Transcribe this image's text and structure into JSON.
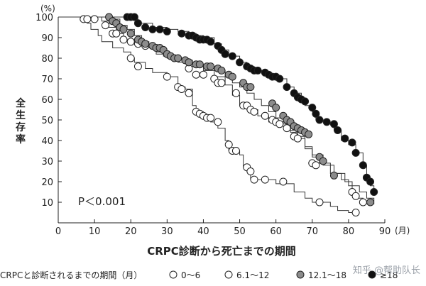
{
  "chart_data": {
    "type": "line",
    "step": true,
    "ylabel": "全生存率",
    "y_unit": "(%)",
    "xlabel": "CRPC診断から死亡までの期間",
    "x_unit": "(月)",
    "xlim": [
      0,
      90
    ],
    "ylim": [
      0,
      100
    ],
    "x_ticks": [
      "0",
      "10",
      "20",
      "30",
      "40",
      "50",
      "60",
      "70",
      "80",
      "90"
    ],
    "y_ticks": [
      "10",
      "20",
      "30",
      "40",
      "50",
      "60",
      "70",
      "80",
      "90",
      "100"
    ],
    "annotation": "P＜0.001",
    "grid": false,
    "legend_position": "bottom",
    "legend_title": "CRPCと診断されるまでの期間（月）",
    "series": [
      {
        "name": "0～6",
        "marker": "open",
        "steps": [
          [
            0,
            100
          ],
          [
            7,
            99
          ],
          [
            8,
            97
          ],
          [
            9,
            94
          ],
          [
            11,
            91
          ],
          [
            12,
            88
          ],
          [
            15,
            85
          ],
          [
            18,
            83
          ],
          [
            20,
            80
          ],
          [
            21,
            78
          ],
          [
            24,
            75
          ],
          [
            26,
            73
          ],
          [
            28,
            73
          ],
          [
            30,
            71
          ],
          [
            33,
            66
          ],
          [
            35,
            65
          ],
          [
            37,
            57
          ],
          [
            38,
            54
          ],
          [
            40,
            52
          ],
          [
            42,
            49
          ],
          [
            44,
            46
          ],
          [
            46,
            40
          ],
          [
            47,
            35
          ],
          [
            50,
            33
          ],
          [
            51,
            27
          ],
          [
            52,
            25
          ],
          [
            53,
            21
          ],
          [
            57,
            21
          ],
          [
            58,
            21
          ],
          [
            60,
            19
          ],
          [
            65,
            15
          ],
          [
            68,
            12
          ],
          [
            70,
            10
          ],
          [
            75,
            8
          ],
          [
            77,
            6
          ],
          [
            80,
            5
          ],
          [
            82,
            5
          ]
        ],
        "censored": [
          [
            7,
            99
          ],
          [
            15,
            92
          ],
          [
            20,
            80
          ],
          [
            22,
            76
          ],
          [
            30,
            71
          ],
          [
            33,
            66
          ],
          [
            34,
            65
          ],
          [
            36,
            63
          ],
          [
            38,
            54
          ],
          [
            39,
            53
          ],
          [
            40,
            52
          ],
          [
            41,
            51
          ],
          [
            42,
            51
          ],
          [
            44,
            49
          ],
          [
            47,
            38
          ],
          [
            48,
            35
          ],
          [
            49,
            35
          ],
          [
            52,
            27
          ],
          [
            53,
            25
          ],
          [
            54,
            21
          ],
          [
            57,
            21
          ],
          [
            62,
            20
          ],
          [
            72,
            10
          ],
          [
            82,
            5
          ]
        ]
      },
      {
        "name": "6.1～12",
        "marker": "open",
        "steps": [
          [
            0,
            100
          ],
          [
            9,
            100
          ],
          [
            12,
            98
          ],
          [
            14,
            95
          ],
          [
            16,
            92
          ],
          [
            18,
            89
          ],
          [
            21,
            87
          ],
          [
            24,
            85
          ],
          [
            27,
            82
          ],
          [
            30,
            80
          ],
          [
            33,
            78
          ],
          [
            36,
            76
          ],
          [
            40,
            74
          ],
          [
            43,
            71
          ],
          [
            46,
            67
          ],
          [
            48,
            62
          ],
          [
            50,
            57
          ],
          [
            52,
            55
          ],
          [
            55,
            52
          ],
          [
            58,
            49
          ],
          [
            61,
            47
          ],
          [
            64,
            44
          ],
          [
            66,
            41
          ],
          [
            68,
            37
          ],
          [
            70,
            33
          ],
          [
            73,
            28
          ],
          [
            76,
            24
          ],
          [
            79,
            20
          ],
          [
            81,
            15
          ],
          [
            82,
            12
          ],
          [
            84,
            10
          ],
          [
            86,
            9
          ]
        ],
        "censored": [
          [
            8,
            99
          ],
          [
            10,
            99
          ],
          [
            13,
            96
          ],
          [
            16,
            92
          ],
          [
            18,
            89
          ],
          [
            20,
            88
          ],
          [
            22,
            87
          ],
          [
            24,
            86
          ],
          [
            36,
            75
          ],
          [
            38,
            72
          ],
          [
            40,
            72
          ],
          [
            43,
            70
          ],
          [
            44,
            68
          ],
          [
            45,
            68
          ],
          [
            49,
            63
          ],
          [
            51,
            57
          ],
          [
            52,
            57
          ],
          [
            53,
            55
          ],
          [
            54,
            54
          ],
          [
            57,
            52
          ],
          [
            59,
            50
          ],
          [
            60,
            49
          ],
          [
            61,
            48
          ],
          [
            63,
            46
          ],
          [
            65,
            42
          ],
          [
            66,
            41
          ],
          [
            70,
            29
          ],
          [
            71,
            28
          ],
          [
            81,
            15
          ],
          [
            82,
            13
          ],
          [
            84,
            10
          ]
        ]
      },
      {
        "name": "12.1～18",
        "marker": "gray",
        "steps": [
          [
            0,
            100
          ],
          [
            14,
            100
          ],
          [
            15,
            99
          ],
          [
            17,
            96
          ],
          [
            19,
            94
          ],
          [
            21,
            91
          ],
          [
            23,
            88
          ],
          [
            25,
            86
          ],
          [
            27,
            83
          ],
          [
            29,
            81
          ],
          [
            32,
            80
          ],
          [
            35,
            79
          ],
          [
            37,
            77
          ],
          [
            40,
            76
          ],
          [
            43,
            74
          ],
          [
            46,
            71
          ],
          [
            48,
            68
          ],
          [
            50,
            66
          ],
          [
            52,
            63
          ],
          [
            54,
            60
          ],
          [
            56,
            57
          ],
          [
            58,
            54
          ],
          [
            60,
            51
          ],
          [
            62,
            48
          ],
          [
            64,
            45
          ],
          [
            66,
            42
          ],
          [
            68,
            36
          ],
          [
            70,
            32
          ],
          [
            72,
            29
          ],
          [
            75,
            24
          ],
          [
            78,
            21
          ],
          [
            80,
            18
          ],
          [
            83,
            15
          ],
          [
            85,
            12
          ],
          [
            87,
            9
          ]
        ],
        "censored": [
          [
            14,
            100
          ],
          [
            15,
            98
          ],
          [
            16,
            97
          ],
          [
            17,
            95
          ],
          [
            18,
            94
          ],
          [
            20,
            92
          ],
          [
            22,
            89
          ],
          [
            23,
            88
          ],
          [
            24,
            87
          ],
          [
            26,
            86
          ],
          [
            27,
            85
          ],
          [
            28,
            85
          ],
          [
            29,
            84
          ],
          [
            30,
            82
          ],
          [
            31,
            81
          ],
          [
            32,
            80
          ],
          [
            33,
            80
          ],
          [
            35,
            79
          ],
          [
            36,
            78
          ],
          [
            38,
            77
          ],
          [
            39,
            77
          ],
          [
            41,
            76
          ],
          [
            42,
            76
          ],
          [
            44,
            75
          ],
          [
            45,
            74
          ],
          [
            47,
            72
          ],
          [
            48,
            71
          ],
          [
            51,
            68
          ],
          [
            52,
            66
          ],
          [
            53,
            66
          ],
          [
            59,
            58
          ],
          [
            60,
            56
          ],
          [
            62,
            52
          ],
          [
            63,
            50
          ],
          [
            64,
            49
          ],
          [
            65,
            47
          ],
          [
            66,
            46
          ],
          [
            67,
            45
          ],
          [
            68,
            44
          ],
          [
            69,
            43
          ],
          [
            72,
            32
          ],
          [
            73,
            30
          ],
          [
            76,
            23
          ],
          [
            86,
            10
          ]
        ]
      },
      {
        "name": "≥18",
        "marker": "black",
        "steps": [
          [
            0,
            100
          ],
          [
            18,
            100
          ],
          [
            20,
            99
          ],
          [
            22,
            97
          ],
          [
            26,
            95
          ],
          [
            30,
            94
          ],
          [
            33,
            93
          ],
          [
            36,
            92
          ],
          [
            38,
            91
          ],
          [
            40,
            90
          ],
          [
            43,
            87
          ],
          [
            45,
            84
          ],
          [
            47,
            81
          ],
          [
            50,
            78
          ],
          [
            52,
            76
          ],
          [
            54,
            74
          ],
          [
            57,
            72
          ],
          [
            60,
            70
          ],
          [
            63,
            66
          ],
          [
            65,
            63
          ],
          [
            67,
            60
          ],
          [
            68,
            57
          ],
          [
            70,
            54
          ],
          [
            71,
            50
          ],
          [
            74,
            48
          ],
          [
            76,
            45
          ],
          [
            78,
            40
          ],
          [
            80,
            38
          ],
          [
            82,
            34
          ],
          [
            84,
            28
          ],
          [
            85,
            22
          ],
          [
            86,
            18
          ],
          [
            87,
            14
          ]
        ],
        "censored": [
          [
            19,
            100
          ],
          [
            20,
            100
          ],
          [
            21,
            100
          ],
          [
            22,
            97
          ],
          [
            24,
            95
          ],
          [
            26,
            94
          ],
          [
            28,
            94
          ],
          [
            30,
            93
          ],
          [
            34,
            92
          ],
          [
            36,
            91
          ],
          [
            37,
            91
          ],
          [
            38,
            90
          ],
          [
            39,
            89
          ],
          [
            40,
            89
          ],
          [
            41,
            89
          ],
          [
            42,
            88
          ],
          [
            44,
            86
          ],
          [
            45,
            84
          ],
          [
            46,
            82
          ],
          [
            48,
            81
          ],
          [
            50,
            78
          ],
          [
            52,
            76
          ],
          [
            53,
            75
          ],
          [
            54,
            74
          ],
          [
            55,
            74
          ],
          [
            57,
            73
          ],
          [
            58,
            72
          ],
          [
            59,
            71
          ],
          [
            60,
            71
          ],
          [
            61,
            70
          ],
          [
            63,
            66
          ],
          [
            65,
            63
          ],
          [
            66,
            61
          ],
          [
            67,
            60
          ],
          [
            68,
            59
          ],
          [
            70,
            56
          ],
          [
            71,
            53
          ],
          [
            72,
            50
          ],
          [
            74,
            49
          ],
          [
            76,
            48
          ],
          [
            77,
            45
          ],
          [
            79,
            41
          ],
          [
            81,
            39
          ],
          [
            82,
            34
          ],
          [
            84,
            28
          ],
          [
            85,
            22
          ],
          [
            86,
            20
          ],
          [
            87,
            15
          ]
        ]
      }
    ]
  },
  "watermark": "知乎 @帮助队长",
  "colors": {
    "open": "#ffffff",
    "gray": "#8c8c8c",
    "black": "#111111",
    "line": "#333333"
  }
}
